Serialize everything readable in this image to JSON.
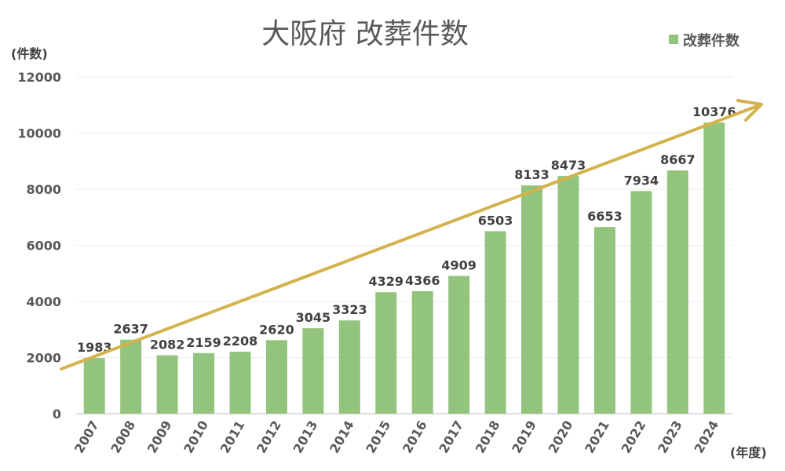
{
  "chart_data": {
    "type": "bar",
    "title": "大阪府 改葬件数",
    "ylabel": "(件数)",
    "xlabel": "(年度)",
    "categories": [
      "2007",
      "2008",
      "2009",
      "2010",
      "2011",
      "2012",
      "2013",
      "2014",
      "2015",
      "2016",
      "2017",
      "2018",
      "2019",
      "2020",
      "2021",
      "2022",
      "2023",
      "2024"
    ],
    "series": [
      {
        "name": "改葬件数",
        "values": [
          1983,
          2637,
          2082,
          2159,
          2208,
          2620,
          3045,
          3323,
          4329,
          4366,
          4909,
          6503,
          8133,
          8473,
          6653,
          7934,
          8667,
          10376
        ],
        "color": "#93c47d"
      }
    ],
    "ylim": [
      0,
      12000
    ],
    "yticks": [
      0,
      2000,
      4000,
      6000,
      8000,
      10000,
      12000
    ],
    "grid": true,
    "legend": "top-right",
    "data_labels": true,
    "trend_arrow": {
      "color": "#d4b24c",
      "direction": "upward"
    }
  }
}
